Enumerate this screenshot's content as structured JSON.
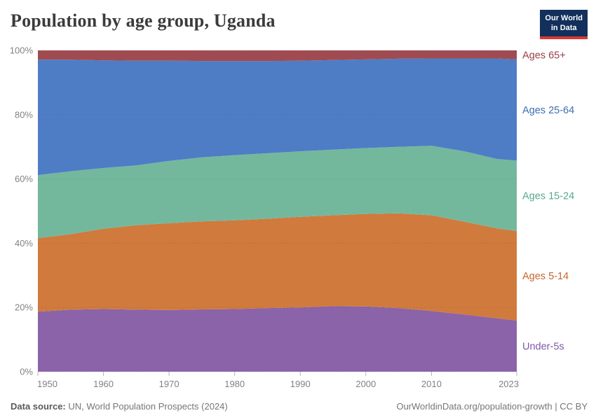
{
  "header": {
    "title": "Population by age group, Uganda"
  },
  "logo": {
    "line1": "Our World",
    "line2": "in Data",
    "bg_color": "#12305b",
    "stripe_color": "#d93831"
  },
  "footer": {
    "source_label": "Data source:",
    "source_text": " UN, World Population Prospects (2024)",
    "right_text": "OurWorldinData.org/population-growth | CC BY"
  },
  "chart_data": {
    "type": "area",
    "stacked": true,
    "unit": "%",
    "title": "Population by age group, Uganda",
    "xlabel": "",
    "ylabel": "",
    "ylim": [
      0,
      100
    ],
    "grid": "dashed-horizontal",
    "legend_position": "right",
    "x": [
      1950,
      1955,
      1960,
      1965,
      1970,
      1975,
      1980,
      1985,
      1990,
      1995,
      2000,
      2005,
      2010,
      2015,
      2020,
      2023
    ],
    "x_tick_years": [
      1950,
      1960,
      1970,
      1980,
      1990,
      2000,
      2010,
      2023
    ],
    "x_tick_labels": [
      "1950",
      "1960",
      "1970",
      "1980",
      "1990",
      "2000",
      "2010",
      "2023"
    ],
    "y_ticks": [
      0,
      20,
      40,
      60,
      80,
      100
    ],
    "y_tick_suffix": "%",
    "axis_text_color": "#828282",
    "series": [
      {
        "name": "Under-5s",
        "color": "#8b63a8",
        "label_color": "#8159a8",
        "values": [
          18.7,
          19.3,
          19.5,
          19.3,
          19.2,
          19.4,
          19.5,
          19.8,
          20.0,
          20.4,
          20.3,
          19.8,
          18.9,
          17.8,
          16.6,
          15.9
        ]
      },
      {
        "name": "Ages 5-14",
        "color": "#d07a3d",
        "label_color": "#c4682e",
        "values": [
          22.9,
          23.5,
          25.0,
          26.3,
          27.0,
          27.4,
          27.6,
          27.8,
          28.2,
          28.3,
          28.8,
          29.5,
          29.8,
          28.9,
          28.0,
          27.9
        ]
      },
      {
        "name": "Ages 15-24",
        "color": "#73b89d",
        "label_color": "#57a98a",
        "values": [
          19.6,
          19.6,
          18.9,
          18.6,
          19.4,
          19.9,
          20.3,
          20.4,
          20.4,
          20.4,
          20.5,
          20.7,
          21.6,
          21.9,
          21.6,
          21.9
        ]
      },
      {
        "name": "Ages 25-64",
        "color": "#4e7dc5",
        "label_color": "#3f6db4",
        "values": [
          35.9,
          34.7,
          33.5,
          32.6,
          31.2,
          30.0,
          29.3,
          28.7,
          28.2,
          27.9,
          27.6,
          27.4,
          27.2,
          28.9,
          31.3,
          31.5
        ]
      },
      {
        "name": "Ages 65+",
        "color": "#a04b52",
        "label_color": "#9a3e45",
        "values": [
          2.9,
          2.9,
          3.1,
          3.2,
          3.2,
          3.3,
          3.3,
          3.3,
          3.2,
          3.0,
          2.8,
          2.6,
          2.5,
          2.5,
          2.5,
          2.8
        ]
      }
    ]
  }
}
